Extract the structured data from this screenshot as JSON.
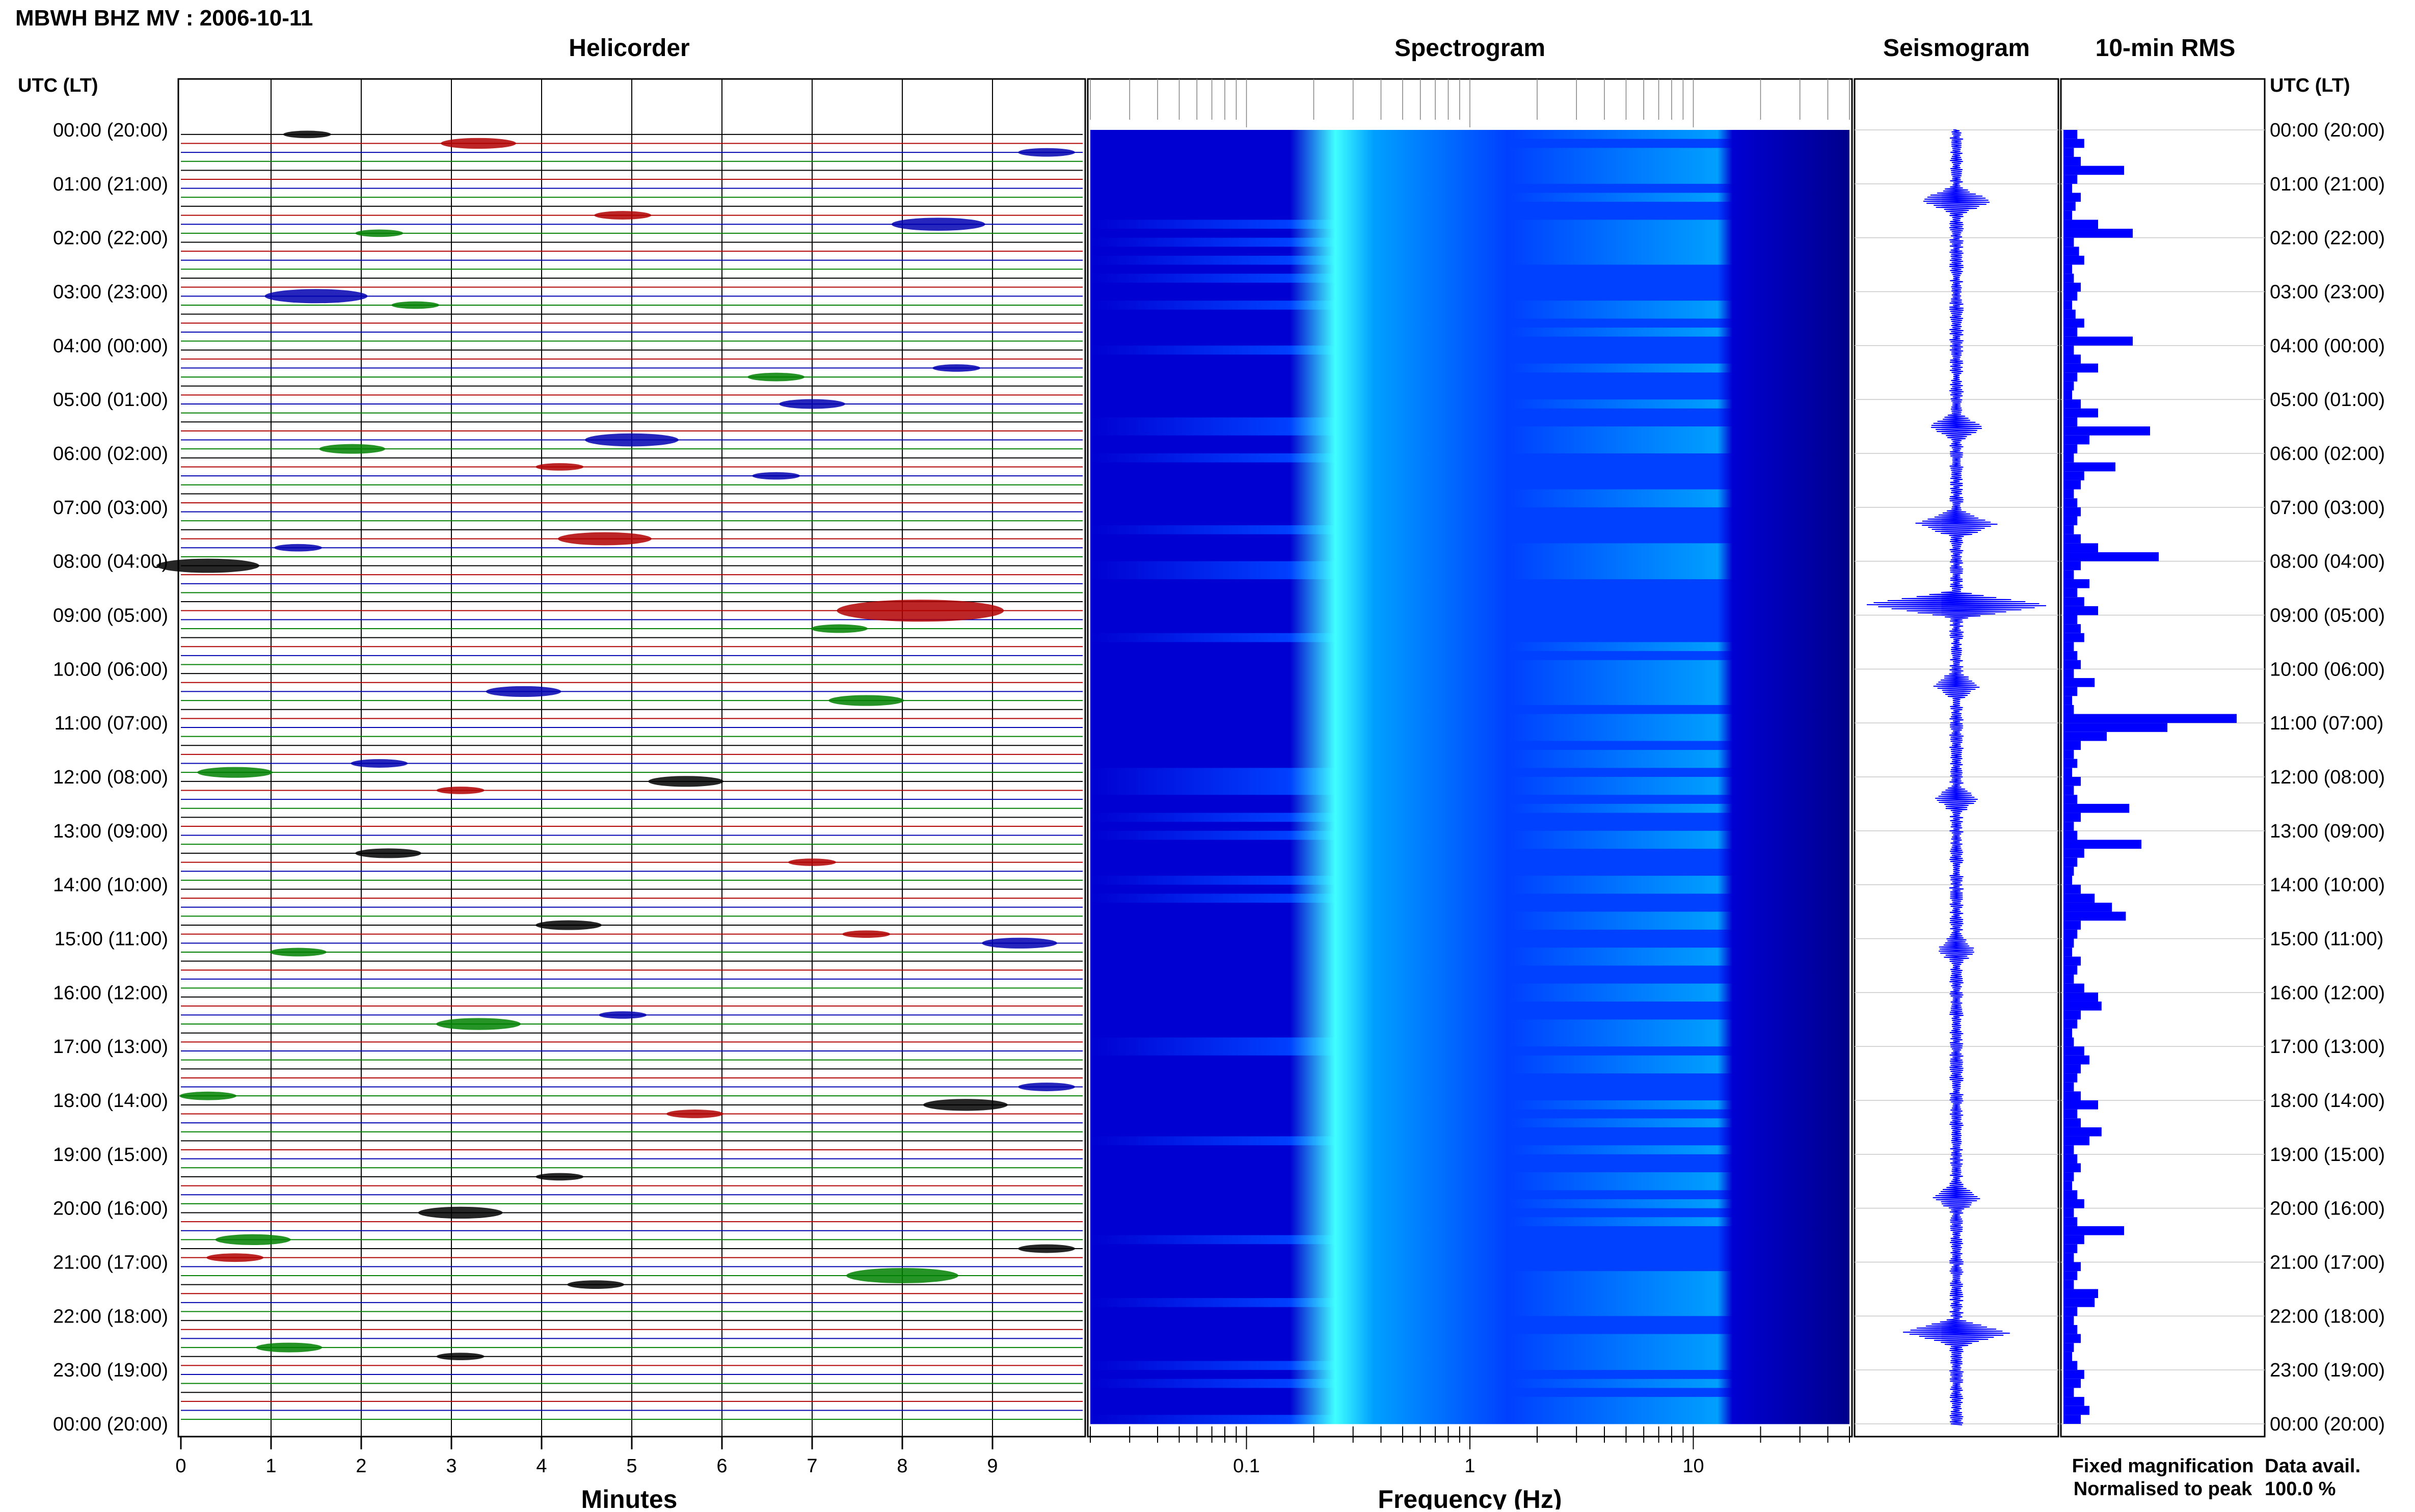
{
  "header": {
    "station_title": "MBWH BHZ MV : 2006-10-11",
    "utc_label": "UTC (LT)"
  },
  "panels": {
    "helicorder": "Helicorder",
    "spectrogram": "Spectrogram",
    "seismogram": "Seismogram",
    "rms": "10-min RMS"
  },
  "time_labels": [
    "00:00 (20:00)",
    "01:00 (21:00)",
    "02:00 (22:00)",
    "03:00 (23:00)",
    "04:00 (00:00)",
    "05:00 (01:00)",
    "06:00 (02:00)",
    "07:00 (03:00)",
    "08:00 (04:00)",
    "09:00 (05:00)",
    "10:00 (06:00)",
    "11:00 (07:00)",
    "12:00 (08:00)",
    "13:00 (09:00)",
    "14:00 (10:00)",
    "15:00 (11:00)",
    "16:00 (12:00)",
    "17:00 (13:00)",
    "18:00 (14:00)",
    "19:00 (15:00)",
    "20:00 (16:00)",
    "21:00 (17:00)",
    "22:00 (18:00)",
    "23:00 (19:00)",
    "00:00 (20:00)"
  ],
  "helicorder_axis": {
    "xlabel": "Minutes",
    "ticks": [
      "0",
      "1",
      "2",
      "3",
      "4",
      "5",
      "6",
      "7",
      "8",
      "9"
    ],
    "line_colors": [
      "#000000",
      "#b00000",
      "#0000b0",
      "#008000"
    ]
  },
  "spectrogram_axis": {
    "xlabel": "Frequency (Hz)",
    "ticks": [
      "0.1",
      "1",
      "10"
    ],
    "fmin": 0.02,
    "fmax": 50
  },
  "legend": {
    "fixed": "Fixed magnification",
    "normalised": "Normalised to peak",
    "fixed_color": "#1010ff",
    "normalised_color": "#ff1010"
  },
  "data_availability": {
    "label": "Data avail.",
    "value": "100.0 %"
  },
  "chart_data": [
    {
      "type": "line",
      "name": "helicorder",
      "xlabel": "Minutes",
      "xlim": [
        0,
        10
      ],
      "rows_per_hour": 6,
      "events": [
        {
          "hour": 0,
          "minute": 1.4,
          "amp": 0.3
        },
        {
          "hour": 0,
          "minute": 3.3,
          "amp": 0.6
        },
        {
          "hour": 0,
          "minute": 9.6,
          "amp": 0.4
        },
        {
          "hour": 1,
          "minute": 4.9,
          "amp": 0.4
        },
        {
          "hour": 1,
          "minute": 8.4,
          "amp": 0.8
        },
        {
          "hour": 1,
          "minute": 2.2,
          "amp": 0.3
        },
        {
          "hour": 3,
          "minute": 1.5,
          "amp": 0.9
        },
        {
          "hour": 3,
          "minute": 2.6,
          "amp": 0.3
        },
        {
          "hour": 4,
          "minute": 8.6,
          "amp": 0.3
        },
        {
          "hour": 4,
          "minute": 6.6,
          "amp": 0.4
        },
        {
          "hour": 5,
          "minute": 5.0,
          "amp": 0.8
        },
        {
          "hour": 5,
          "minute": 1.9,
          "amp": 0.5
        },
        {
          "hour": 5,
          "minute": 7.0,
          "amp": 0.5
        },
        {
          "hour": 6,
          "minute": 4.2,
          "amp": 0.3
        },
        {
          "hour": 6,
          "minute": 6.6,
          "amp": 0.3
        },
        {
          "hour": 7,
          "minute": 4.7,
          "amp": 0.8
        },
        {
          "hour": 7,
          "minute": 1.3,
          "amp": 0.3
        },
        {
          "hour": 8,
          "minute": 8.2,
          "amp": 1.6
        },
        {
          "hour": 8,
          "minute": 0.3,
          "amp": 0.9
        },
        {
          "hour": 9,
          "minute": 7.3,
          "amp": 0.4
        },
        {
          "hour": 10,
          "minute": 3.8,
          "amp": 0.6
        },
        {
          "hour": 10,
          "minute": 7.6,
          "amp": 0.6
        },
        {
          "hour": 11,
          "minute": 2.2,
          "amp": 0.4
        },
        {
          "hour": 11,
          "minute": 0.6,
          "amp": 0.6
        },
        {
          "hour": 12,
          "minute": 5.6,
          "amp": 0.6
        },
        {
          "hour": 12,
          "minute": 3.1,
          "amp": 0.3
        },
        {
          "hour": 13,
          "minute": 2.3,
          "amp": 0.5
        },
        {
          "hour": 13,
          "minute": 7.0,
          "amp": 0.3
        },
        {
          "hour": 14,
          "minute": 4.3,
          "amp": 0.5
        },
        {
          "hour": 14,
          "minute": 7.6,
          "amp": 0.3
        },
        {
          "hour": 15,
          "minute": 9.3,
          "amp": 0.6
        },
        {
          "hour": 15,
          "minute": 1.3,
          "amp": 0.4
        },
        {
          "hour": 16,
          "minute": 4.9,
          "amp": 0.3
        },
        {
          "hour": 16,
          "minute": 3.3,
          "amp": 0.7
        },
        {
          "hour": 17,
          "minute": 9.6,
          "amp": 0.4
        },
        {
          "hour": 17,
          "minute": 0.3,
          "amp": 0.4
        },
        {
          "hour": 18,
          "minute": 8.7,
          "amp": 0.7
        },
        {
          "hour": 18,
          "minute": 5.7,
          "amp": 0.4
        },
        {
          "hour": 19,
          "minute": 4.2,
          "amp": 0.3
        },
        {
          "hour": 20,
          "minute": 0.8,
          "amp": 0.6
        },
        {
          "hour": 20,
          "minute": 9.6,
          "amp": 0.4
        },
        {
          "hour": 20,
          "minute": 0.6,
          "amp": 0.4
        },
        {
          "hour": 20,
          "minute": 3.1,
          "amp": 0.7
        },
        {
          "hour": 21,
          "minute": 8.0,
          "amp": 1.0
        },
        {
          "hour": 21,
          "minute": 4.6,
          "amp": 0.4
        },
        {
          "hour": 22,
          "minute": 1.2,
          "amp": 0.5
        },
        {
          "hour": 22,
          "minute": 3.1,
          "amp": 0.3
        }
      ]
    },
    {
      "type": "heatmap",
      "name": "spectrogram",
      "xlabel": "Frequency (Hz)",
      "xscale": "log",
      "xlim": [
        0.02,
        50
      ],
      "ylim": [
        0,
        24
      ],
      "colormap": [
        "#00008c",
        "#0000d2",
        "#0040ff",
        "#00a0ff",
        "#40ffff",
        "#c8ff40",
        "#ffff00"
      ],
      "ridge_frequency_hz": 0.25,
      "cutoff_frequency_hz": 15
    },
    {
      "type": "line",
      "name": "seismogram",
      "events": [
        {
          "hour": 8.8,
          "amp": 1.0
        },
        {
          "hour": 22.3,
          "amp": 0.55
        },
        {
          "hour": 1.3,
          "amp": 0.35
        },
        {
          "hour": 5.5,
          "amp": 0.25
        },
        {
          "hour": 10.3,
          "amp": 0.2
        },
        {
          "hour": 7.3,
          "amp": 0.4
        },
        {
          "hour": 12.4,
          "amp": 0.18
        },
        {
          "hour": 15.2,
          "amp": 0.15
        },
        {
          "hour": 19.8,
          "amp": 0.2
        }
      ]
    },
    {
      "type": "bar",
      "name": "10-min RMS",
      "orientation": "horizontal",
      "bins_per_hour": 6,
      "values": [
        0.08,
        0.12,
        0.06,
        0.1,
        0.35,
        0.08,
        0.05,
        0.1,
        0.07,
        0.05,
        0.2,
        0.4,
        0.06,
        0.09,
        0.12,
        0.05,
        0.06,
        0.1,
        0.08,
        0.05,
        0.07,
        0.12,
        0.08,
        0.4,
        0.06,
        0.1,
        0.2,
        0.08,
        0.06,
        0.05,
        0.1,
        0.2,
        0.08,
        0.5,
        0.15,
        0.08,
        0.06,
        0.3,
        0.12,
        0.1,
        0.06,
        0.08,
        0.1,
        0.08,
        0.06,
        0.1,
        0.2,
        0.55,
        0.1,
        0.06,
        0.15,
        0.08,
        0.12,
        0.2,
        0.08,
        0.1,
        0.12,
        0.06,
        0.08,
        0.1,
        0.06,
        0.18,
        0.08,
        0.05,
        0.06,
        1.0,
        0.6,
        0.25,
        0.1,
        0.06,
        0.08,
        0.05,
        0.1,
        0.06,
        0.08,
        0.38,
        0.1,
        0.06,
        0.08,
        0.45,
        0.12,
        0.08,
        0.06,
        0.05,
        0.1,
        0.18,
        0.28,
        0.36,
        0.1,
        0.08,
        0.06,
        0.05,
        0.1,
        0.08,
        0.06,
        0.12,
        0.2,
        0.22,
        0.1,
        0.08,
        0.05,
        0.06,
        0.12,
        0.15,
        0.1,
        0.08,
        0.06,
        0.1,
        0.2,
        0.08,
        0.1,
        0.22,
        0.15,
        0.06,
        0.08,
        0.1,
        0.06,
        0.05,
        0.08,
        0.12,
        0.06,
        0.08,
        0.35,
        0.12,
        0.08,
        0.06,
        0.1,
        0.08,
        0.06,
        0.2,
        0.18,
        0.08,
        0.06,
        0.08,
        0.1,
        0.06,
        0.05,
        0.08,
        0.12,
        0.1,
        0.06,
        0.12,
        0.15,
        0.1
      ]
    }
  ]
}
